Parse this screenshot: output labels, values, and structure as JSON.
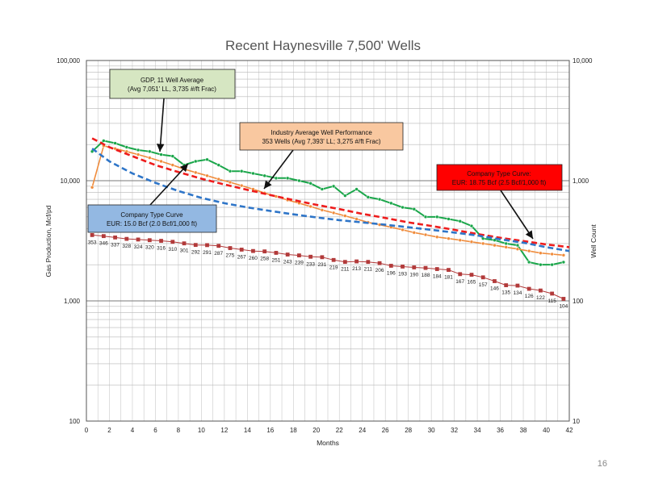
{
  "page": {
    "number": "16"
  },
  "chart_data": {
    "type": "line",
    "title": "Recent Haynesville 7,500' Wells",
    "xlabel": "Months",
    "ylabel": "Gas Production, Mcf/pd",
    "y2label": "Well Count",
    "xlim": [
      0,
      42
    ],
    "ylim": [
      100,
      100000
    ],
    "y2lim": [
      10,
      10000
    ],
    "yscale": "log",
    "y2scale": "log",
    "grid": true,
    "xticks": [
      "0",
      "2",
      "4",
      "6",
      "8",
      "10",
      "12",
      "14",
      "16",
      "18",
      "20",
      "22",
      "24",
      "26",
      "28",
      "30",
      "32",
      "34",
      "36",
      "38",
      "40",
      "42"
    ],
    "yticks": [
      {
        "value": 100,
        "label": "100"
      },
      {
        "value": 1000,
        "label": "1,000"
      },
      {
        "value": 10000,
        "label": "10,000"
      },
      {
        "value": 100000,
        "label": "100,000"
      }
    ],
    "y2ticks": [
      {
        "value": 10,
        "label": "10"
      },
      {
        "value": 100,
        "label": "100"
      },
      {
        "value": 1000,
        "label": "1,000"
      },
      {
        "value": 10000,
        "label": "10,000"
      }
    ],
    "series": [
      {
        "name": "GDP, 11 Well Average",
        "color": "#1aa64a",
        "style": "line-markers",
        "x": [
          0.5,
          1.5,
          2.5,
          3.5,
          4.5,
          5.5,
          6.5,
          7.5,
          8.5,
          9.5,
          10.5,
          11.5,
          12.5,
          13.5,
          14.5,
          15.5,
          16.5,
          17.5,
          18.5,
          19.5,
          20.5,
          21.5,
          22.5,
          23.5,
          24.5,
          25.5,
          26.5,
          27.5,
          28.5,
          29.5,
          30.5,
          31.5,
          32.5,
          33.5,
          34.5,
          35.5,
          36.5,
          37.5,
          38.5,
          39.5,
          40.5,
          41.5
        ],
        "y": [
          17500,
          21500,
          20500,
          19000,
          18000,
          17500,
          16500,
          16000,
          13500,
          14500,
          15000,
          13500,
          12000,
          12000,
          11500,
          11000,
          10500,
          10500,
          10000,
          9500,
          8500,
          9000,
          7500,
          8500,
          7300,
          7000,
          6500,
          6000,
          5800,
          5000,
          5000,
          4800,
          4600,
          4200,
          3300,
          3200,
          3000,
          2900,
          2100,
          2000,
          2000,
          2100
        ]
      },
      {
        "name": "Industry Average Well Performance",
        "color": "#f08c3c",
        "style": "line-markers",
        "x": [
          0.5,
          1.5,
          2.5,
          3.5,
          4.5,
          5.5,
          6.5,
          7.5,
          8.5,
          9.5,
          10.5,
          11.5,
          12.5,
          13.5,
          14.5,
          15.5,
          16.5,
          17.5,
          18.5,
          19.5,
          20.5,
          21.5,
          22.5,
          23.5,
          24.5,
          25.5,
          26.5,
          27.5,
          28.5,
          29.5,
          30.5,
          31.5,
          32.5,
          33.5,
          34.5,
          35.5,
          36.5,
          37.5,
          38.5,
          39.5,
          40.5,
          41.5
        ],
        "y": [
          8800,
          19500,
          18500,
          17500,
          16500,
          15500,
          14500,
          13500,
          12500,
          11700,
          11000,
          10300,
          9700,
          9100,
          8500,
          7900,
          7400,
          6900,
          6500,
          6100,
          5700,
          5400,
          5100,
          4800,
          4500,
          4300,
          4100,
          3900,
          3700,
          3550,
          3400,
          3300,
          3200,
          3100,
          3000,
          2900,
          2800,
          2700,
          2600,
          2500,
          2450,
          2400
        ]
      },
      {
        "name": "Company Type Curve: EUR: 18.75 Bcf (2.5 Bcf/1,000 ft)",
        "color": "#ee1c1c",
        "style": "dashed",
        "x": [
          0.5,
          2,
          4,
          6,
          8,
          10,
          12,
          14,
          16,
          18,
          20,
          22,
          24,
          26,
          28,
          30,
          32,
          34,
          36,
          38,
          40,
          42
        ],
        "y": [
          22500,
          19000,
          16000,
          13500,
          11800,
          10400,
          9300,
          8400,
          7600,
          6900,
          6300,
          5800,
          5300,
          4900,
          4500,
          4200,
          3900,
          3600,
          3350,
          3150,
          2950,
          2800
        ]
      },
      {
        "name": "Company Type Curve EUR: 15.0 Bcf (2.0 Bcf/1,000 ft)",
        "color": "#2e75c8",
        "style": "dashed",
        "x": [
          0.5,
          2,
          4,
          6,
          8,
          10,
          12,
          14,
          16,
          18,
          20,
          22,
          24,
          26,
          28,
          30,
          32,
          34,
          36,
          38,
          40,
          42
        ],
        "y": [
          18500,
          14500,
          11500,
          9600,
          8200,
          7200,
          6500,
          6000,
          5600,
          5250,
          4950,
          4700,
          4500,
          4300,
          4100,
          3900,
          3700,
          3500,
          3250,
          3050,
          2800,
          2600
        ]
      },
      {
        "name": "Well Count",
        "color": "#b23a3a",
        "style": "markers-line",
        "axis": "right",
        "x": [
          0.5,
          1.5,
          2.5,
          3.5,
          4.5,
          5.5,
          6.5,
          7.5,
          8.5,
          9.5,
          10.5,
          11.5,
          12.5,
          13.5,
          14.5,
          15.5,
          16.5,
          17.5,
          18.5,
          19.5,
          20.5,
          21.5,
          22.5,
          23.5,
          24.5,
          25.5,
          26.5,
          27.5,
          28.5,
          29.5,
          30.5,
          31.5,
          32.5,
          33.5,
          34.5,
          35.5,
          36.5,
          37.5,
          38.5,
          39.5,
          40.5,
          41.5
        ],
        "y": [
          353,
          346,
          337,
          328,
          324,
          320,
          316,
          310,
          301,
          292,
          291,
          287,
          275,
          267,
          260,
          258,
          251,
          243,
          239,
          233,
          231,
          219,
          211,
          213,
          211,
          206,
          196,
          193,
          190,
          188,
          184,
          181,
          167,
          165,
          157,
          146,
          135,
          134,
          126,
          122,
          115,
          104
        ]
      }
    ],
    "well_count_labels": [
      "353",
      "346",
      "337",
      "328",
      "324",
      "320",
      "316",
      "310",
      "301",
      "292",
      "291",
      "287",
      "275",
      "267",
      "260",
      "258",
      "251",
      "243",
      "239",
      "233",
      "231",
      "219",
      "211",
      "213",
      "211",
      "206",
      "196",
      "193",
      "190",
      "188",
      "184",
      "181",
      "167",
      "165",
      "157",
      "146",
      "135",
      "134",
      "126",
      "122",
      "115",
      "104"
    ],
    "annotations": [
      {
        "id": "gdp",
        "text1": "GDP, 11 Well Average",
        "text2": "(Avg 7,051' LL, 3,735 #/ft Frac)",
        "fill": "#d6e6c2"
      },
      {
        "id": "industry",
        "text1": "Industry Average Well Performance",
        "text2": "353 Wells (Avg 7,393' LL; 3,275 #/ft Frac)",
        "fill": "#f9c8a0"
      },
      {
        "id": "red",
        "text1": "Company Type Curve:",
        "text2": "EUR: 18.75 Bcf (2.5 Bcf/1,000 ft)",
        "fill": "#ff0000"
      },
      {
        "id": "blue",
        "text1": "Company Type Curve",
        "text2": "EUR: 15.0 Bcf (2.0 Bcf/1,000 ft)",
        "fill": "#93b8e2"
      }
    ]
  }
}
